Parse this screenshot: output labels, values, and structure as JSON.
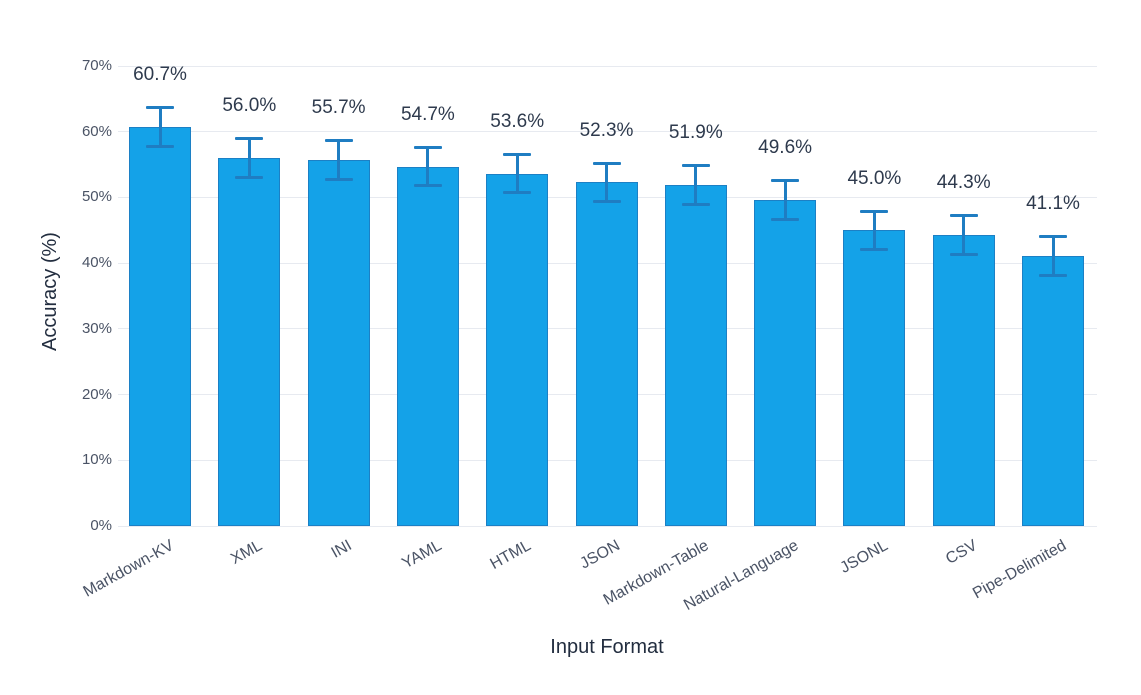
{
  "chart_data": {
    "type": "bar",
    "title": "",
    "xlabel": "Input Format",
    "ylabel": "Accuracy (%)",
    "categories": [
      "Markdown-KV",
      "XML",
      "INI",
      "YAML",
      "HTML",
      "JSON",
      "Markdown-Table",
      "Natural-Language",
      "JSONL",
      "CSV",
      "Pipe-Delimited"
    ],
    "values": [
      60.7,
      56.0,
      55.7,
      54.7,
      53.6,
      52.3,
      51.9,
      49.6,
      45.0,
      44.3,
      41.1
    ],
    "value_labels": [
      "60.7%",
      "56.0%",
      "55.7%",
      "54.7%",
      "53.6%",
      "52.3%",
      "51.9%",
      "49.6%",
      "45.0%",
      "44.3%",
      "41.1%"
    ],
    "errors": [
      3.0,
      3.0,
      3.0,
      3.0,
      3.0,
      3.0,
      3.0,
      3.0,
      3.0,
      3.0,
      3.0
    ],
    "y_tick_labels": [
      "0%",
      "10%",
      "20%",
      "30%",
      "40%",
      "50%",
      "60%",
      "70%"
    ],
    "y_tick_values": [
      0,
      10,
      20,
      30,
      40,
      50,
      60,
      70
    ],
    "ylim": [
      0,
      70
    ],
    "grid": "horizontal-only",
    "legend": "none",
    "colors": {
      "bar_fill": "#14A2E8",
      "bar_border": "#1C80C5",
      "error_bar": "#1F7DC2",
      "gridline": "#E7EAF0",
      "value_label_text": "#2E3A4D",
      "tick_label_text": "#4A5365",
      "axis_title_text": "#222D3F"
    }
  }
}
